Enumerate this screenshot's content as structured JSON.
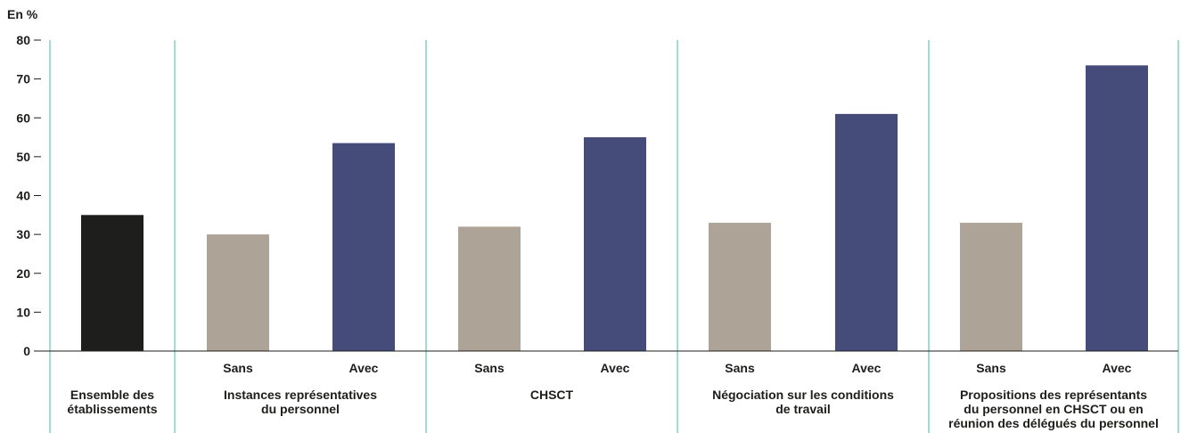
{
  "chart_data": {
    "type": "bar",
    "unit_label": "En %",
    "ylim": [
      0,
      80
    ],
    "yticks": [
      0,
      10,
      20,
      30,
      40,
      50,
      60,
      70,
      80
    ],
    "grid": false,
    "colors": {
      "ensemble": "#1e1e1c",
      "sans": "#ada497",
      "avec": "#454c79",
      "separator": "#3fbfa6",
      "axis": "#1d1d1b"
    },
    "groups": [
      {
        "label_lines": [
          "Ensemble des",
          "établissements"
        ],
        "bars": [
          {
            "category": "",
            "value": 35,
            "series": "ensemble"
          }
        ]
      },
      {
        "label_lines": [
          "Instances représentatives",
          "du personnel"
        ],
        "bars": [
          {
            "category": "Sans",
            "value": 30,
            "series": "sans"
          },
          {
            "category": "Avec",
            "value": 53.5,
            "series": "avec"
          }
        ]
      },
      {
        "label_lines": [
          "CHSCT"
        ],
        "bars": [
          {
            "category": "Sans",
            "value": 32,
            "series": "sans"
          },
          {
            "category": "Avec",
            "value": 55,
            "series": "avec"
          }
        ]
      },
      {
        "label_lines": [
          "Négociation sur les conditions",
          "de travail"
        ],
        "bars": [
          {
            "category": "Sans",
            "value": 33,
            "series": "sans"
          },
          {
            "category": "Avec",
            "value": 61,
            "series": "avec"
          }
        ]
      },
      {
        "label_lines": [
          "Propositions des représentants",
          "du personnel en CHSCT ou en",
          "réunion des délégués du personnel"
        ],
        "bars": [
          {
            "category": "Sans",
            "value": 33,
            "series": "sans"
          },
          {
            "category": "Avec",
            "value": 73.5,
            "series": "avec"
          }
        ]
      }
    ]
  }
}
